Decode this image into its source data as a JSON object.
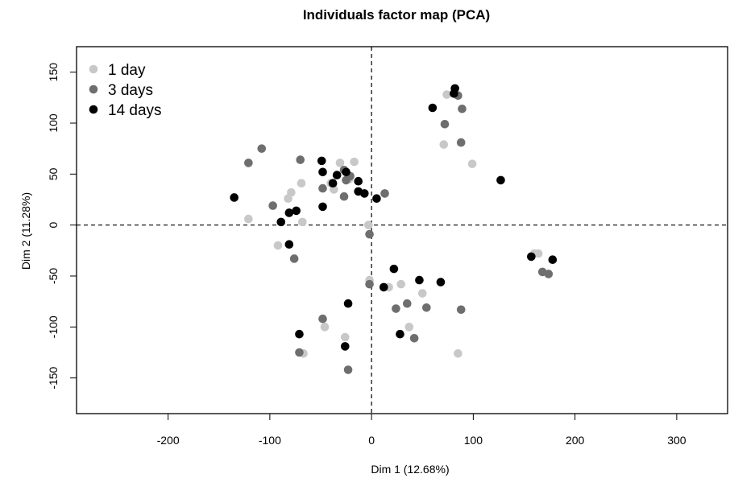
{
  "chart_data": {
    "type": "scatter",
    "title": "Individuals factor map (PCA)",
    "xlabel": "Dim 1 (12.68%)",
    "ylabel": "Dim 2 (11.28%)",
    "xlim": [
      -290,
      350
    ],
    "ylim": [
      -185,
      175
    ],
    "xticks": [
      -200,
      -100,
      0,
      100,
      200,
      300
    ],
    "yticks": [
      -150,
      -100,
      -50,
      0,
      50,
      100,
      150
    ],
    "xtick_labels": [
      "-200",
      "-100",
      "0",
      "100",
      "200",
      "300"
    ],
    "ytick_labels": [
      "-150",
      "-100",
      "-50",
      "0",
      "50",
      "100",
      "150"
    ],
    "reference_lines": {
      "x": 0,
      "y": 0,
      "style": "dashed"
    },
    "grid": false,
    "legend": {
      "position": "top-left"
    },
    "series": [
      {
        "name": "1 day",
        "color": "#c8c8c8",
        "points": [
          [
            -121,
            6
          ],
          [
            -82,
            26
          ],
          [
            -79,
            32
          ],
          [
            -69,
            41
          ],
          [
            -92,
            -20
          ],
          [
            -68,
            3
          ],
          [
            -40,
            41
          ],
          [
            -37,
            35
          ],
          [
            -31,
            61
          ],
          [
            -17,
            62
          ],
          [
            -22,
            45
          ],
          [
            -3,
            0
          ],
          [
            71,
            79
          ],
          [
            74,
            128
          ],
          [
            99,
            60
          ],
          [
            -2,
            -54
          ],
          [
            17,
            -61
          ],
          [
            29,
            -58
          ],
          [
            50,
            -67
          ],
          [
            37,
            -100
          ],
          [
            -46,
            -100
          ],
          [
            -26,
            -110
          ],
          [
            -67,
            -126
          ],
          [
            85,
            -126
          ],
          [
            160,
            -28
          ],
          [
            164,
            -28
          ]
        ]
      },
      {
        "name": "3 days",
        "color": "#6e6e6e",
        "points": [
          [
            -121,
            61
          ],
          [
            -108,
            75
          ],
          [
            -97,
            19
          ],
          [
            -70,
            64
          ],
          [
            -76,
            -33
          ],
          [
            -48,
            36
          ],
          [
            -27,
            54
          ],
          [
            -21,
            48
          ],
          [
            -25,
            44
          ],
          [
            -27,
            28
          ],
          [
            13,
            31
          ],
          [
            -2,
            -9
          ],
          [
            72,
            99
          ],
          [
            85,
            127
          ],
          [
            89,
            114
          ],
          [
            88,
            81
          ],
          [
            -2,
            -58
          ],
          [
            24,
            -82
          ],
          [
            35,
            -77
          ],
          [
            54,
            -81
          ],
          [
            88,
            -83
          ],
          [
            -48,
            -92
          ],
          [
            42,
            -111
          ],
          [
            -71,
            -125
          ],
          [
            -23,
            -142
          ],
          [
            168,
            -46
          ],
          [
            174,
            -48
          ]
        ]
      },
      {
        "name": "14 days",
        "color": "#000000",
        "points": [
          [
            -135,
            27
          ],
          [
            -89,
            3
          ],
          [
            -81,
            12
          ],
          [
            -74,
            14
          ],
          [
            -81,
            -19
          ],
          [
            -49,
            63
          ],
          [
            -48,
            52
          ],
          [
            -48,
            18
          ],
          [
            -38,
            41
          ],
          [
            -34,
            49
          ],
          [
            -25,
            52
          ],
          [
            -13,
            43
          ],
          [
            -13,
            33
          ],
          [
            -7,
            31
          ],
          [
            5,
            26
          ],
          [
            82,
            134
          ],
          [
            81,
            129
          ],
          [
            60,
            115
          ],
          [
            127,
            44
          ],
          [
            22,
            -43
          ],
          [
            12,
            -61
          ],
          [
            47,
            -54
          ],
          [
            68,
            -56
          ],
          [
            -23,
            -77
          ],
          [
            28,
            -107
          ],
          [
            -71,
            -107
          ],
          [
            -26,
            -119
          ],
          [
            157,
            -31
          ],
          [
            178,
            -34
          ]
        ]
      }
    ]
  }
}
